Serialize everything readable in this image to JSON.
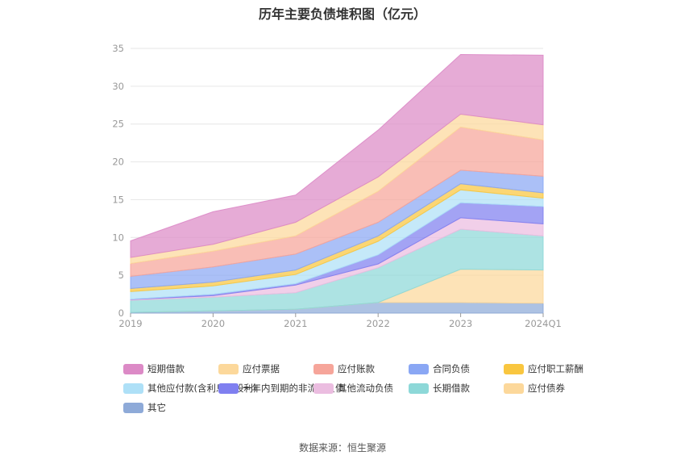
{
  "chart_data": {
    "type": "area",
    "stacked": true,
    "title": "历年主要负债堆积图（亿元）",
    "categories": [
      "2019",
      "2020",
      "2021",
      "2022",
      "2023",
      "2024Q1"
    ],
    "ylim": [
      0,
      35
    ],
    "yticks": [
      0,
      5,
      10,
      15,
      20,
      25,
      30,
      35
    ],
    "grid": true,
    "legend_position": "bottom",
    "series": [
      {
        "name": "其它",
        "color": "#8eaad8",
        "values": [
          0.1,
          0.3,
          0.5,
          1.4,
          1.4,
          1.3
        ]
      },
      {
        "name": "应付债券",
        "color": "#fcd89b",
        "values": [
          0,
          0,
          0,
          0,
          4.4,
          4.4
        ]
      },
      {
        "name": "长期借款",
        "color": "#8dd8d8",
        "values": [
          1.6,
          1.8,
          2.2,
          4.6,
          5.3,
          4.5
        ]
      },
      {
        "name": "其他流动负债",
        "color": "#ebbde0",
        "values": [
          0.1,
          0.2,
          1.0,
          0.5,
          1.5,
          1.6
        ]
      },
      {
        "name": "一年内到期的非流动负债",
        "color": "#7f7ff0",
        "values": [
          0.05,
          0.2,
          0.2,
          1.2,
          2.0,
          2.3
        ]
      },
      {
        "name": "其他应付款(含利息和股利)",
        "color": "#aee0f7",
        "values": [
          1.0,
          1.1,
          1.2,
          1.8,
          1.7,
          1.1
        ]
      },
      {
        "name": "应付职工薪酬",
        "color": "#f9c63f",
        "values": [
          0.4,
          0.5,
          0.6,
          0.7,
          0.8,
          0.7
        ]
      },
      {
        "name": "合同负债",
        "color": "#8aa7f4",
        "values": [
          1.6,
          2.0,
          2.1,
          1.8,
          1.8,
          2.2
        ]
      },
      {
        "name": "应付账款",
        "color": "#f6a59a",
        "values": [
          1.7,
          2.1,
          2.4,
          4.1,
          5.7,
          4.8
        ]
      },
      {
        "name": "应付票据",
        "color": "#fcd89b",
        "values": [
          0.8,
          0.9,
          1.8,
          1.9,
          1.7,
          2.0
        ]
      },
      {
        "name": "短期借款",
        "color": "#dc8ac6",
        "values": [
          2.2,
          4.3,
          3.6,
          6.2,
          7.9,
          9.2
        ]
      }
    ],
    "legend_order": [
      "短期借款",
      "应付票据",
      "应付账款",
      "合同负债",
      "应付职工薪酬",
      "其他应付款(含利息和股利)",
      "一年内到期的非流动负债",
      "其他流动负债",
      "长期借款",
      "应付债券",
      "其它"
    ]
  },
  "source_text": "数据来源：恒生聚源"
}
